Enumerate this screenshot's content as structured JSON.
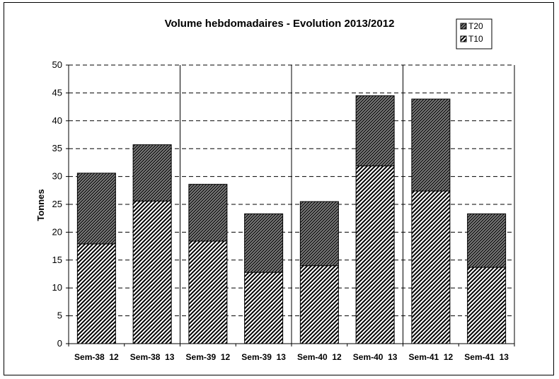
{
  "chart_data": {
    "type": "bar",
    "stacked": true,
    "title": "Volume hebdomadaires  - Evolution 2013/2012",
    "xlabel": "",
    "ylabel": "Tonnes",
    "ylim": [
      0,
      50
    ],
    "yticks": [
      0,
      5,
      10,
      15,
      20,
      25,
      30,
      35,
      40,
      45,
      50
    ],
    "grid": "horizontal dashed",
    "legend_position": "top-right",
    "categories": [
      "Sem-38  12",
      "Sem-38  13",
      "Sem-39  12",
      "Sem-39  13",
      "Sem-40  12",
      "Sem-40  13",
      "Sem-41  12",
      "Sem-41  13"
    ],
    "series": [
      {
        "name": "T10",
        "pattern": "diagonal-hatch",
        "values": [
          17.9,
          25.6,
          18.4,
          12.8,
          14.0,
          31.9,
          27.4,
          13.7
        ]
      },
      {
        "name": "T20",
        "pattern": "dense-crosshatch",
        "values": [
          12.7,
          10.1,
          10.2,
          10.5,
          11.5,
          12.6,
          16.5,
          9.6
        ]
      }
    ]
  }
}
